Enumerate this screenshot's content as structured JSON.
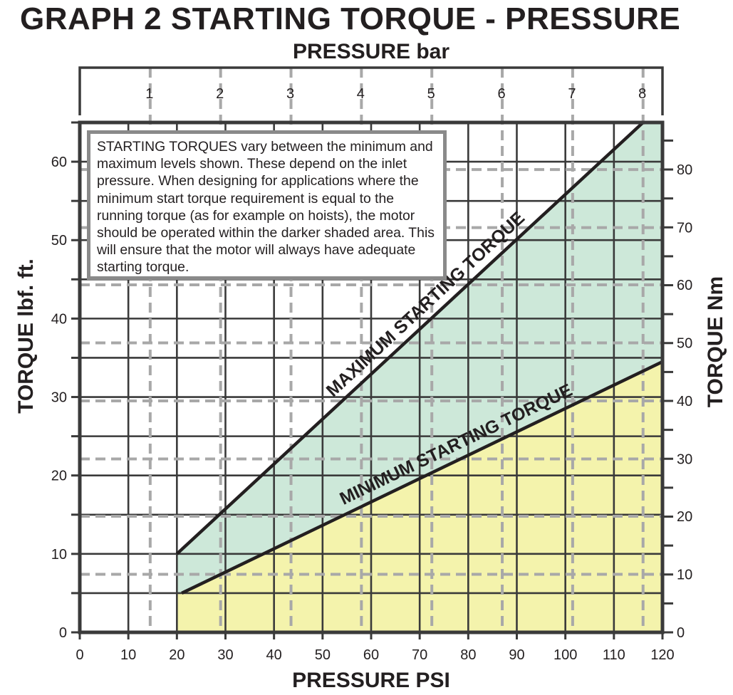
{
  "title": "GRAPH 2 STARTING TORQUE - PRESSURE",
  "note": "STARTING TORQUES vary between the minimum and maximum levels shown. These depend on the inlet pressure. When designing for applications where the minimum start torque requirement is equal to the running torque (as for example on hoists), the motor should be operated within the darker shaded area. This will ensure that the motor will always have adequate starting torque.",
  "colors": {
    "max_band": "#cde8d9",
    "min_band": "#f4f3ac",
    "frame": "#3a3a3a",
    "dashed_grid": "#a8a8a8",
    "note_border": "#8a8a8a"
  },
  "chart_data": {
    "type": "area",
    "title": "GRAPH 2 STARTING TORQUE - PRESSURE",
    "x_axis": {
      "label": "PRESSURE PSI",
      "range": [
        0,
        120
      ],
      "ticks": [
        "0",
        "10",
        "20",
        "30",
        "40",
        "50",
        "60",
        "70",
        "80",
        "90",
        "100",
        "110",
        "120"
      ]
    },
    "x2_axis": {
      "label": "PRESSURE bar",
      "position": "top",
      "ticks": [
        {
          "label": "1",
          "psi": 14.5
        },
        {
          "label": "2",
          "psi": 29
        },
        {
          "label": "3",
          "psi": 43.5
        },
        {
          "label": "4",
          "psi": 58
        },
        {
          "label": "5",
          "psi": 72.5
        },
        {
          "label": "6",
          "psi": 87
        },
        {
          "label": "7",
          "psi": 101.5
        },
        {
          "label": "8",
          "psi": 116
        }
      ]
    },
    "y_axis": {
      "label": "TORQUE lbf. ft.",
      "range": [
        0,
        65
      ],
      "ticks": [
        "0",
        "10",
        "20",
        "30",
        "40",
        "50",
        "60"
      ]
    },
    "y2_axis": {
      "label": "TORQUE Nm",
      "position": "right",
      "ticks": [
        {
          "label": "0",
          "lbf_ft": 0
        },
        {
          "label": "10",
          "lbf_ft": 7.4
        },
        {
          "label": "20",
          "lbf_ft": 14.8
        },
        {
          "label": "30",
          "lbf_ft": 22.1
        },
        {
          "label": "40",
          "lbf_ft": 29.5
        },
        {
          "label": "50",
          "lbf_ft": 36.9
        },
        {
          "label": "60",
          "lbf_ft": 44.3
        },
        {
          "label": "70",
          "lbf_ft": 51.6
        },
        {
          "label": "80",
          "lbf_ft": 59.0
        }
      ]
    },
    "grid": true,
    "series": [
      {
        "name": "MAXIMUM STARTING TORQUE",
        "x": [
          20,
          116
        ],
        "y": [
          10,
          65
        ]
      },
      {
        "name": "MINIMUM STARTING TORQUE",
        "x": [
          21,
          120
        ],
        "y": [
          5,
          34.5
        ]
      }
    ]
  }
}
